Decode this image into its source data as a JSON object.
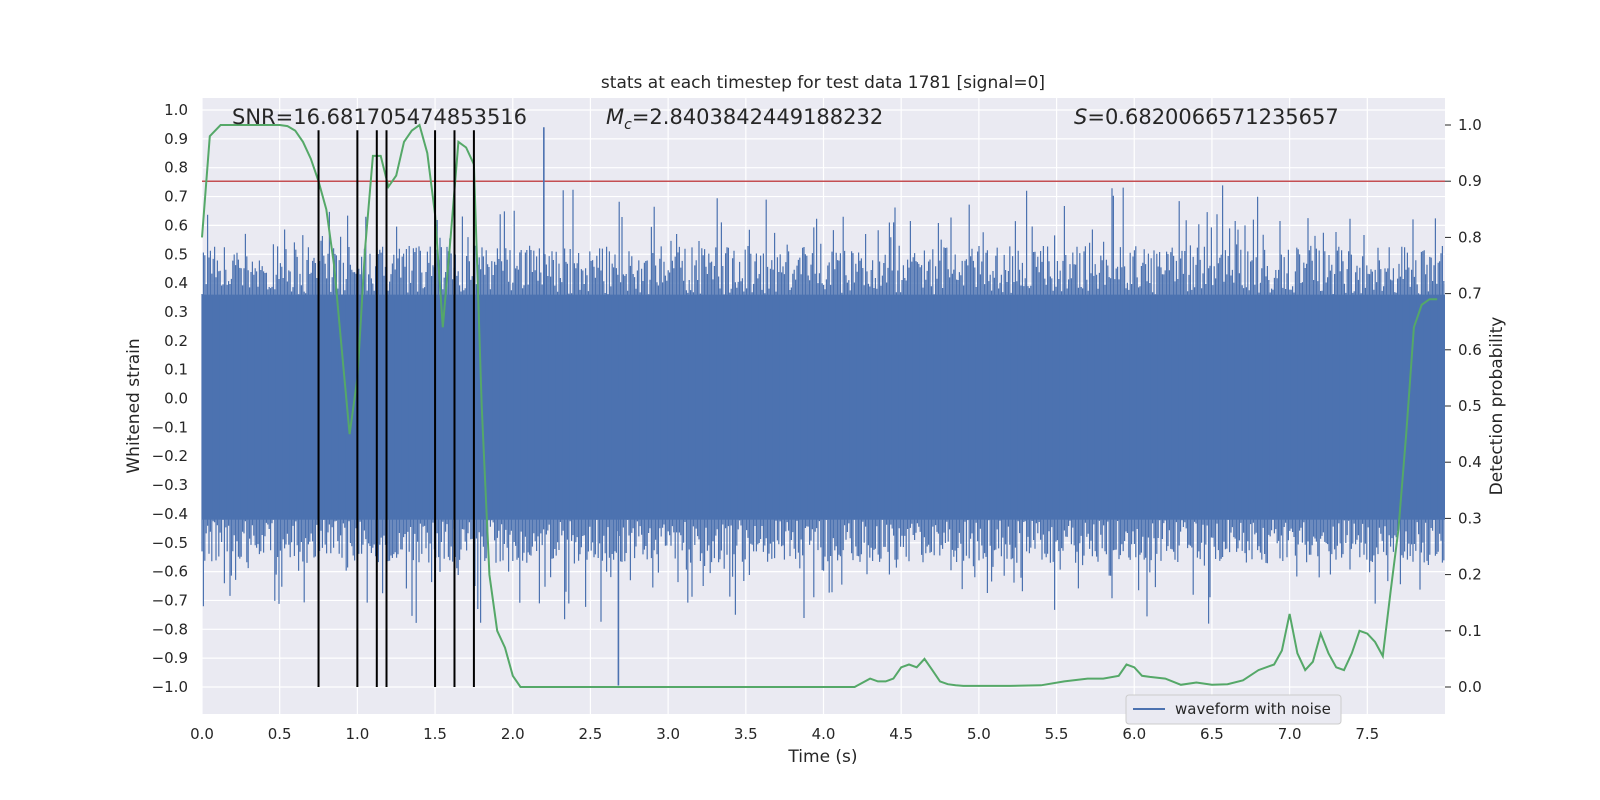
{
  "chart_data": {
    "type": "line",
    "title": "stats at each timestep for test data 1781 [signal=0]",
    "xlabel": "Time (s)",
    "ylabel": "Whitened strain",
    "ylabel_right": "Detection probability",
    "xlim": [
      0.0,
      8.0
    ],
    "ylim": [
      -1.1,
      1.05
    ],
    "ylim_right": [
      -0.047,
      1.045
    ],
    "x_ticks": [
      0.0,
      0.5,
      1.0,
      1.5,
      2.0,
      2.5,
      3.0,
      3.5,
      4.0,
      4.5,
      5.0,
      5.5,
      6.0,
      6.5,
      7.0,
      7.5
    ],
    "y_ticks": [
      1.0,
      0.9,
      0.8,
      0.7,
      0.6,
      0.5,
      0.4,
      0.3,
      0.2,
      0.1,
      0.0,
      -0.1,
      -0.2,
      -0.3,
      -0.4,
      -0.5,
      -0.6,
      -0.7,
      -0.8,
      -0.9,
      -1.0
    ],
    "y_ticks_right": [
      1.0,
      0.9,
      0.8,
      0.7,
      0.6,
      0.5,
      0.4,
      0.3,
      0.2,
      0.1,
      0.0
    ],
    "grid": true,
    "legend_position": "lower-right",
    "annotations": {
      "snr": "SNR=16.681705474853516",
      "mc_symbol": "M",
      "mc_sub": "c",
      "mc_value": "=2.8403842449188232",
      "s_symbol": "S",
      "s_value": "=0.6820066571235657"
    },
    "threshold": 0.9,
    "event_times": [
      0.75,
      1.0,
      1.125,
      1.1875,
      1.5,
      1.625,
      1.75
    ],
    "series": [
      {
        "name": "waveform with noise",
        "kind": "noise",
        "x_range": [
          0.0,
          8.0
        ],
        "core_band": [
          -0.42,
          0.36
        ],
        "min_peak": -0.995,
        "max_peak": 0.94
      },
      {
        "kind": "probability",
        "axis": "right",
        "x": [
          0.0,
          0.05,
          0.12,
          0.2,
          0.3,
          0.4,
          0.5,
          0.55,
          0.6,
          0.65,
          0.7,
          0.75,
          0.8,
          0.85,
          0.9,
          0.95,
          1.0,
          1.05,
          1.1,
          1.15,
          1.2,
          1.25,
          1.3,
          1.35,
          1.4,
          1.45,
          1.5,
          1.55,
          1.6,
          1.65,
          1.7,
          1.75,
          1.8,
          1.85,
          1.9,
          1.95,
          2.0,
          2.05,
          2.1,
          2.2,
          2.3,
          2.5,
          3.0,
          3.5,
          3.75,
          4.0,
          4.2,
          4.3,
          4.35,
          4.4,
          4.45,
          4.5,
          4.55,
          4.6,
          4.65,
          4.7,
          4.75,
          4.8,
          4.85,
          4.9,
          5.0,
          5.2,
          5.4,
          5.55,
          5.7,
          5.8,
          5.9,
          5.95,
          6.0,
          6.05,
          6.1,
          6.2,
          6.3,
          6.4,
          6.5,
          6.6,
          6.7,
          6.8,
          6.9,
          6.95,
          7.0,
          7.05,
          7.1,
          7.15,
          7.2,
          7.25,
          7.3,
          7.35,
          7.4,
          7.45,
          7.5,
          7.55,
          7.6,
          7.65,
          7.7,
          7.75,
          7.8,
          7.85,
          7.9,
          7.95
        ],
        "values": [
          0.8,
          0.98,
          1.0,
          1.0,
          1.0,
          1.0,
          1.0,
          0.998,
          0.99,
          0.97,
          0.94,
          0.9,
          0.85,
          0.75,
          0.6,
          0.45,
          0.55,
          0.78,
          0.945,
          0.945,
          0.89,
          0.91,
          0.97,
          0.99,
          1.0,
          0.95,
          0.84,
          0.64,
          0.8,
          0.97,
          0.96,
          0.93,
          0.5,
          0.2,
          0.1,
          0.07,
          0.02,
          0.0,
          0.0,
          0.0,
          0.0,
          0.0,
          0.0,
          0.0,
          0.0,
          0.0,
          0.0,
          0.015,
          0.01,
          0.01,
          0.015,
          0.035,
          0.04,
          0.035,
          0.05,
          0.03,
          0.01,
          0.005,
          0.003,
          0.002,
          0.002,
          0.002,
          0.003,
          0.01,
          0.015,
          0.015,
          0.02,
          0.04,
          0.035,
          0.02,
          0.018,
          0.015,
          0.004,
          0.008,
          0.004,
          0.005,
          0.012,
          0.03,
          0.04,
          0.065,
          0.13,
          0.06,
          0.03,
          0.045,
          0.095,
          0.06,
          0.035,
          0.03,
          0.06,
          0.1,
          0.095,
          0.08,
          0.055,
          0.17,
          0.28,
          0.45,
          0.64,
          0.68,
          0.69,
          0.69
        ]
      }
    ]
  }
}
